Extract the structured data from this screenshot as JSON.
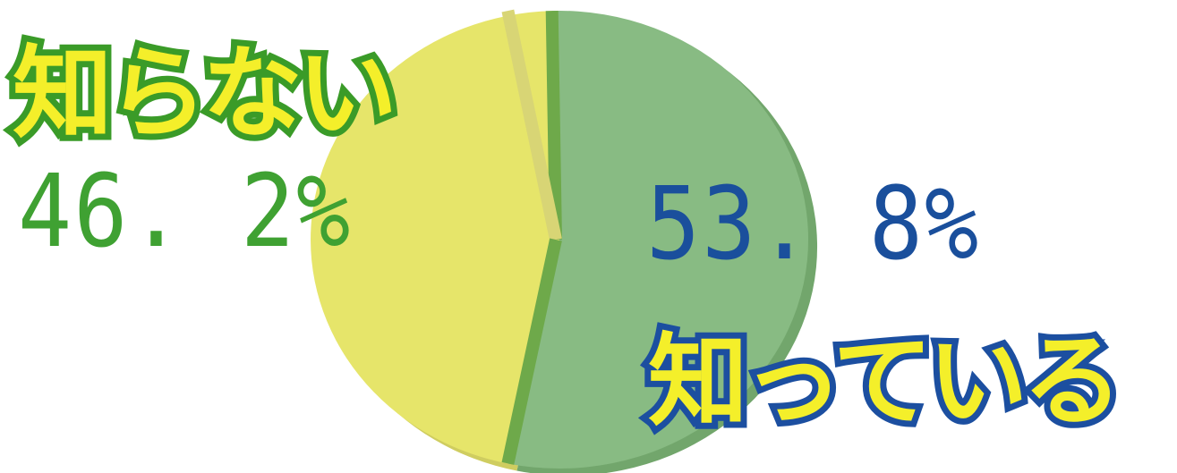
{
  "chart_data": {
    "type": "pie",
    "slices": [
      {
        "label": "知っている",
        "value": 53.8,
        "value_text": "53.8%",
        "color": "#88bb83",
        "shadow": "#72a66c",
        "divider": "#6ea94a"
      },
      {
        "label": "知らない",
        "value": 46.2,
        "value_text": "46.2%",
        "color": "#e6e56a",
        "shadow": "#cfcd60",
        "divider": "#d8d575"
      }
    ]
  },
  "labels": {
    "shitteiru": {
      "name": "知っている",
      "percent": "53. 8%"
    },
    "shiranai": {
      "name": "知らない",
      "percent": "46. 2%"
    }
  }
}
